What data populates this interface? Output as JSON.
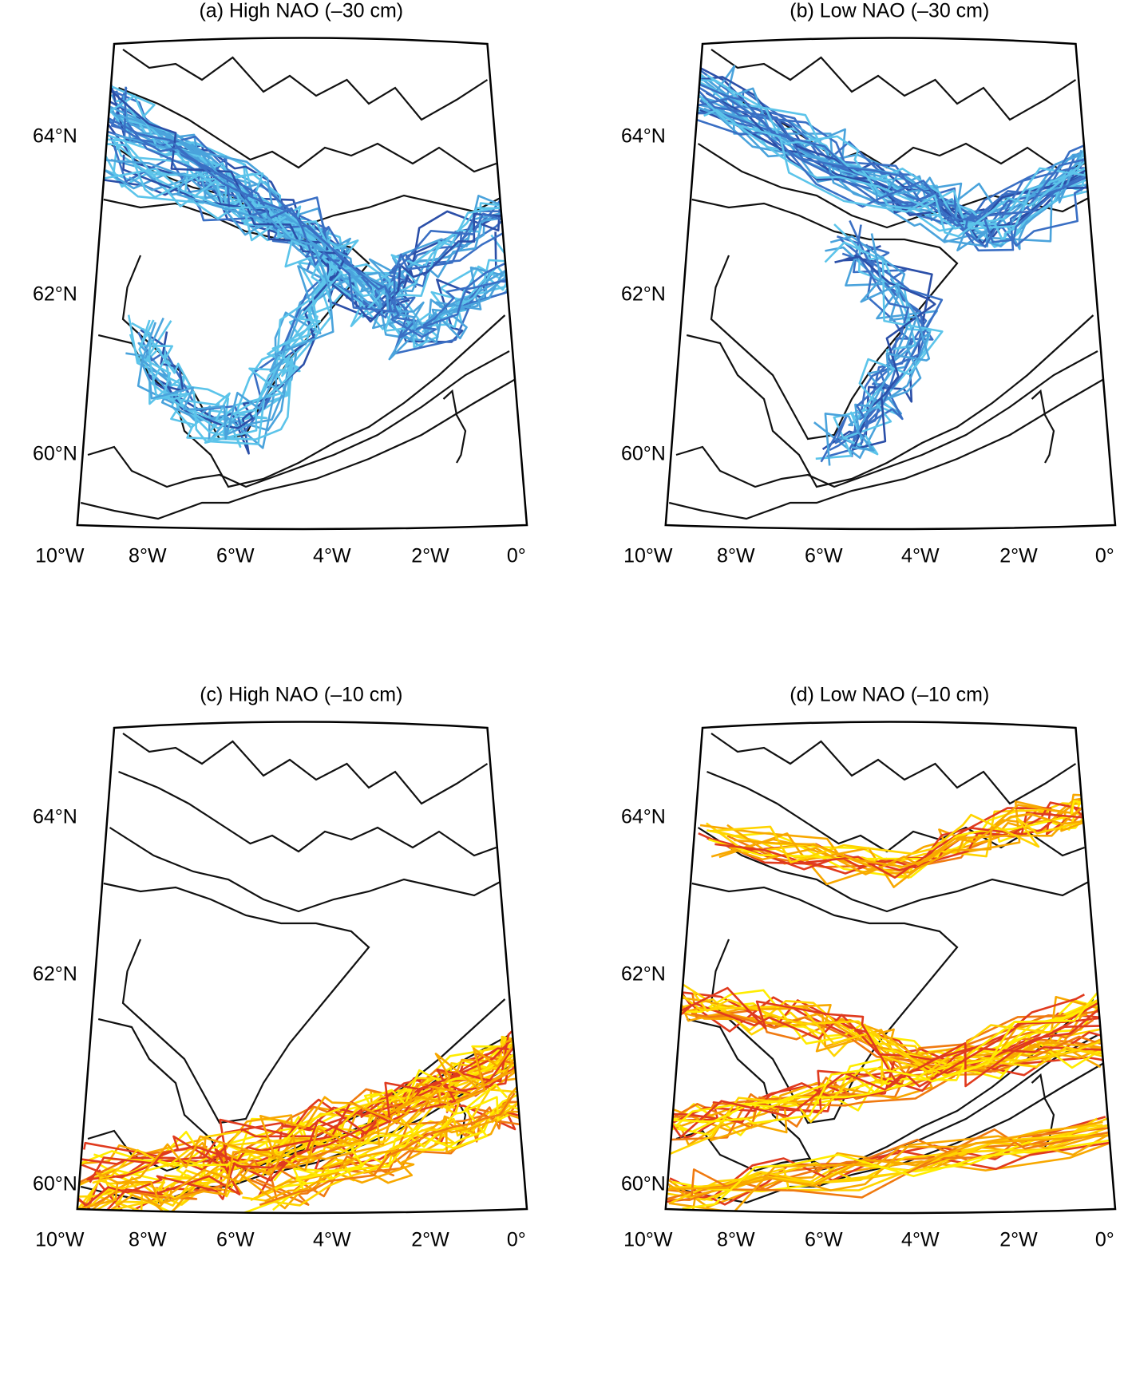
{
  "panels": [
    {
      "title": "(a) High NAO (–30 cm)",
      "line_colors": [
        "#2b4fa8",
        "#3a6fc4",
        "#4aa3dc",
        "#5cc4ea"
      ],
      "lat_labels": [
        "64°N",
        "62°N",
        "60°N"
      ],
      "lon_labels": [
        "10°W",
        "8°W",
        "6°W",
        "4°W",
        "2°W",
        "0°"
      ]
    },
    {
      "title": "(b) Low NAO (–30 cm)",
      "line_colors": [
        "#2b4fa8",
        "#3a6fc4",
        "#4aa3dc",
        "#5cc4ea"
      ],
      "lat_labels": [
        "64°N",
        "62°N",
        "60°N"
      ],
      "lon_labels": [
        "10°W",
        "8°W",
        "6°W",
        "4°W",
        "2°W",
        "0°"
      ]
    },
    {
      "title": "(c) High NAO (–10 cm)",
      "line_colors": [
        "#e03a1e",
        "#f07a10",
        "#f8a800",
        "#ffd400",
        "#ffec00"
      ],
      "lat_labels": [
        "64°N",
        "62°N",
        "60°N"
      ],
      "lon_labels": [
        "10°W",
        "8°W",
        "6°W",
        "4°W",
        "2°W",
        "0°"
      ]
    },
    {
      "title": "(d) Low NAO (–10 cm)",
      "line_colors": [
        "#e03a1e",
        "#f07a10",
        "#f8a800",
        "#ffd400",
        "#ffec00"
      ],
      "lat_labels": [
        "64°N",
        "62°N",
        "60°N"
      ],
      "lon_labels": [
        "10°W",
        "8°W",
        "6°W",
        "4°W",
        "2°W",
        "0°"
      ]
    }
  ]
}
